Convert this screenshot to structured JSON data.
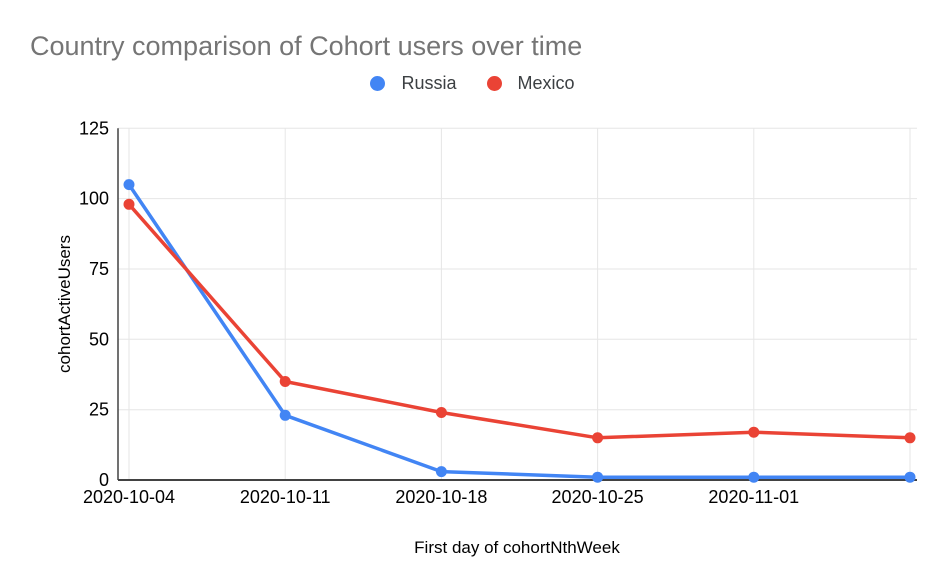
{
  "title": "Country comparison of Cohort users over time",
  "legend": {
    "items": [
      {
        "label": "Russia",
        "color": "#4285F4"
      },
      {
        "label": "Mexico",
        "color": "#EA4335"
      }
    ]
  },
  "chart_data": {
    "type": "line",
    "title": "Country comparison of Cohort users over time",
    "xlabel": "First day of cohortNthWeek",
    "ylabel": "cohortActiveUsers",
    "categories": [
      "2020-10-04",
      "2020-10-11",
      "2020-10-18",
      "2020-10-25",
      "2020-11-01",
      ""
    ],
    "series": [
      {
        "name": "Russia",
        "color": "#4285F4",
        "values": [
          105,
          23,
          3,
          1,
          1,
          1
        ]
      },
      {
        "name": "Mexico",
        "color": "#EA4335",
        "values": [
          98,
          35,
          24,
          15,
          17,
          15
        ]
      }
    ],
    "ylim": [
      0,
      125
    ],
    "yticks": [
      0,
      25,
      50,
      75,
      100,
      125
    ],
    "grid": true,
    "legend_position": "top",
    "colors": {
      "grid": "#e6e6e6",
      "axis": "#424242",
      "tick_text": "#000000",
      "axis_title_text": "#000000"
    }
  }
}
